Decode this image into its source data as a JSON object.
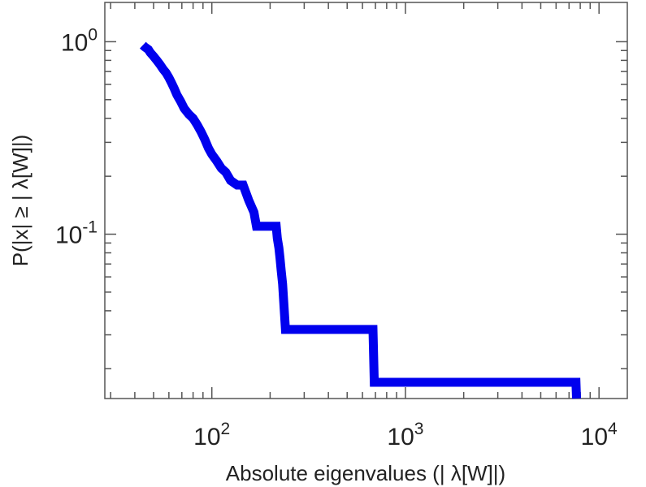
{
  "chart_data": {
    "type": "line",
    "xlabel": "Absolute eigenvalues (|     λ[W]|)",
    "ylabel": "P(|x|  ≥ | λ[W]|)",
    "x_scale": "log",
    "y_scale": "log",
    "xlim": [
      28,
      14000
    ],
    "ylim": [
      0.014,
      1.6
    ],
    "x_tick_labels": [
      {
        "value": 100,
        "base": "10",
        "exp": "2"
      },
      {
        "value": 1000,
        "base": "10",
        "exp": "3"
      },
      {
        "value": 10000,
        "base": "10",
        "exp": "4"
      }
    ],
    "y_tick_labels": [
      {
        "value": 1,
        "base": "10",
        "exp": "0"
      },
      {
        "value": 0.1,
        "base": "10",
        "exp": "-1"
      }
    ],
    "grid": false,
    "colors": {
      "series": "#0000ee",
      "axes": "#555555"
    },
    "series": [
      {
        "x": [
          44,
          45,
          47,
          48,
          50,
          52,
          54,
          56,
          58,
          60,
          62,
          64,
          66,
          69,
          72,
          76,
          80,
          84,
          88,
          92,
          96,
          100,
          106,
          112,
          118,
          125,
          135,
          145,
          155,
          165,
          170,
          215,
          218,
          222,
          225,
          228,
          232,
          235,
          240,
          680,
          690,
          7600,
          7650
        ],
        "y": [
          0.96,
          0.94,
          0.91,
          0.88,
          0.84,
          0.8,
          0.76,
          0.72,
          0.69,
          0.65,
          0.61,
          0.57,
          0.53,
          0.49,
          0.45,
          0.42,
          0.4,
          0.37,
          0.34,
          0.31,
          0.28,
          0.26,
          0.24,
          0.22,
          0.21,
          0.19,
          0.18,
          0.18,
          0.15,
          0.13,
          0.11,
          0.11,
          0.095,
          0.085,
          0.075,
          0.065,
          0.055,
          0.045,
          0.032,
          0.032,
          0.017,
          0.017,
          0.014
        ]
      }
    ]
  }
}
